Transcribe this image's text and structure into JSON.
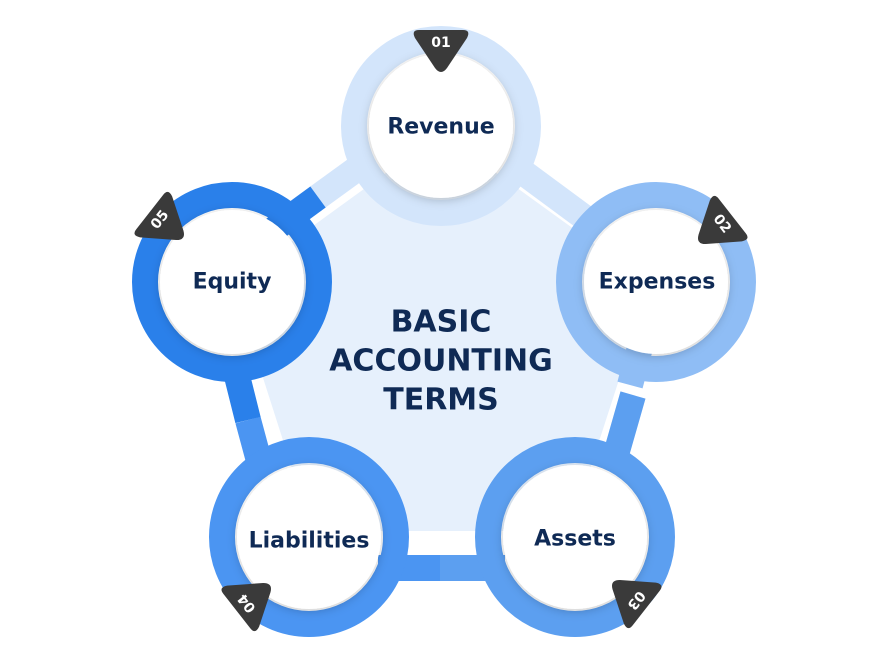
{
  "center": {
    "title_lines": [
      "BASIC",
      "ACCOUNTING",
      "TERMS"
    ]
  },
  "nodes": [
    {
      "number": "01",
      "label": "Revenue",
      "color": "#d3e5fb"
    },
    {
      "number": "02",
      "label": "Expenses",
      "color": "#8fbdf5"
    },
    {
      "number": "03",
      "label": "Assets",
      "color": "#5c9ff0"
    },
    {
      "number": "04",
      "label": "Liabilities",
      "color": "#4b95f2"
    },
    {
      "number": "05",
      "label": "Equity",
      "color": "#2a80ea"
    }
  ],
  "colors": {
    "pentagon_fill": "#e6f0fc",
    "badge": "#3a3a3a",
    "text": "#0f2a55",
    "node_fill": "#ffffff"
  }
}
